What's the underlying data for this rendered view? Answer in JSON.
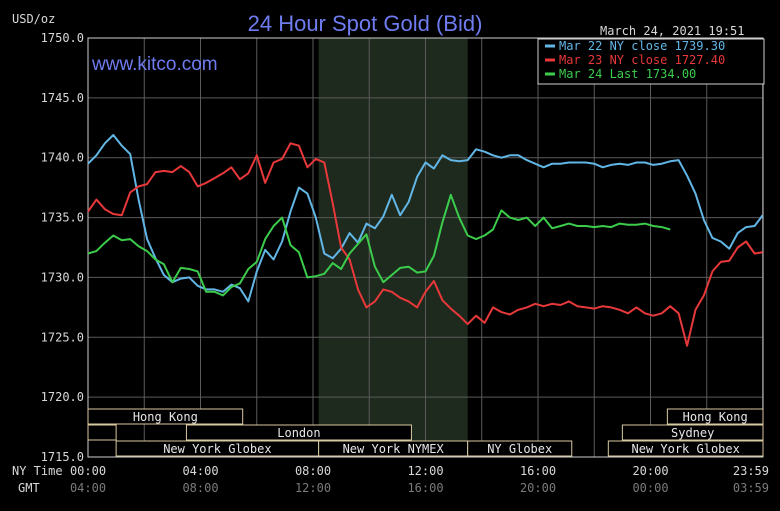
{
  "chart_data": {
    "type": "line",
    "title": "24 Hour Spot Gold (Bid)",
    "brand": "www.kitco.com",
    "timestamp": "March 24, 2021 19:51",
    "ylabel": "USD/oz",
    "ylim": [
      1715.0,
      1750.0
    ],
    "yticks": [
      "1750.0",
      "1745.0",
      "1740.0",
      "1735.0",
      "1730.0",
      "1725.0",
      "1720.0",
      "1715.0"
    ],
    "x_axis_label_ny": "NY Time",
    "x_axis_label_gmt": "GMT",
    "xlim": [
      0,
      24
    ],
    "xticks_ny": [
      "00:00",
      "04:00",
      "08:00",
      "12:00",
      "16:00",
      "20:00",
      "23:59"
    ],
    "xticks_gmt": [
      "04:00",
      "08:00",
      "12:00",
      "16:00",
      "20:00",
      "00:00",
      "03:59"
    ],
    "grid": true,
    "legend_position": "top-right",
    "shaded_region": {
      "x": [
        8.2,
        13.5
      ],
      "color": "#1e2a1e"
    },
    "sessions": [
      {
        "label": "Hong Kong",
        "row": 0,
        "start": 0,
        "end": 5.5
      },
      {
        "label": "Hong Kong",
        "row": 0,
        "start": 20.6,
        "end": 24
      },
      {
        "label": "London",
        "row": 1,
        "start": 3.5,
        "end": 11.5
      },
      {
        "label": "Sydney",
        "row": 1,
        "start": 19.0,
        "end": 24
      },
      {
        "label": "",
        "row": 1,
        "start": 0,
        "end": 1.0
      },
      {
        "label": "New York Globex",
        "row": 2,
        "start": 1.0,
        "end": 8.2
      },
      {
        "label": "New York NYMEX",
        "row": 2,
        "start": 8.2,
        "end": 13.5
      },
      {
        "label": "NY Globex",
        "row": 2,
        "start": 13.5,
        "end": 17.2
      },
      {
        "label": "New York Globex",
        "row": 2,
        "start": 18.5,
        "end": 24
      }
    ],
    "series": [
      {
        "name": "Mar 22 NY close 1739.30",
        "color": "#62b6e6",
        "x": [
          0,
          0.3,
          0.6,
          0.9,
          1.2,
          1.5,
          1.8,
          2.1,
          2.4,
          2.7,
          3.0,
          3.3,
          3.6,
          3.9,
          4.2,
          4.5,
          4.8,
          5.1,
          5.4,
          5.7,
          6.0,
          6.3,
          6.6,
          6.9,
          7.2,
          7.5,
          7.8,
          8.1,
          8.4,
          8.7,
          9.0,
          9.3,
          9.6,
          9.9,
          10.2,
          10.5,
          10.8,
          11.1,
          11.4,
          11.7,
          12.0,
          12.3,
          12.6,
          12.9,
          13.2,
          13.5,
          13.8,
          14.1,
          14.4,
          14.7,
          15.0,
          15.3,
          15.6,
          15.9,
          16.2,
          16.5,
          16.8,
          17.1,
          17.4,
          17.7,
          18.0,
          18.3,
          18.6,
          18.9,
          19.2,
          19.5,
          19.8,
          20.1,
          20.4,
          20.7,
          21.0,
          21.3,
          21.6,
          21.9,
          22.2,
          22.5,
          22.8,
          23.1,
          23.4,
          23.7,
          23.99
        ],
        "y": [
          1739.5,
          1740.2,
          1741.2,
          1741.9,
          1741.0,
          1740.3,
          1736.5,
          1733.2,
          1731.6,
          1730.2,
          1729.6,
          1729.9,
          1730.0,
          1729.3,
          1729.0,
          1729.0,
          1728.8,
          1729.4,
          1729.1,
          1728.0,
          1730.5,
          1732.3,
          1731.5,
          1733.0,
          1735.5,
          1737.5,
          1737.0,
          1735.0,
          1732.0,
          1731.6,
          1732.4,
          1733.7,
          1732.9,
          1734.5,
          1734.1,
          1735.1,
          1736.9,
          1735.2,
          1736.3,
          1738.4,
          1739.6,
          1739.1,
          1740.2,
          1739.8,
          1739.7,
          1739.8,
          1740.7,
          1740.5,
          1740.2,
          1740.0,
          1740.2,
          1740.2,
          1739.8,
          1739.5,
          1739.2,
          1739.5,
          1739.5,
          1739.6,
          1739.6,
          1739.6,
          1739.5,
          1739.2,
          1739.4,
          1739.5,
          1739.4,
          1739.6,
          1739.6,
          1739.4,
          1739.5,
          1739.7,
          1739.8,
          1738.5,
          1737.0,
          1734.8,
          1733.3,
          1733.0,
          1732.4,
          1733.7,
          1734.2,
          1734.3,
          1735.2
        ]
      },
      {
        "name": "Mar 23 NY close 1727.40",
        "color": "#e8383a",
        "x": [
          0,
          0.3,
          0.6,
          0.9,
          1.2,
          1.5,
          1.8,
          2.1,
          2.4,
          2.7,
          3.0,
          3.3,
          3.6,
          3.9,
          4.2,
          4.5,
          4.8,
          5.1,
          5.4,
          5.7,
          6.0,
          6.3,
          6.6,
          6.9,
          7.2,
          7.5,
          7.8,
          8.1,
          8.4,
          8.7,
          9.0,
          9.3,
          9.6,
          9.9,
          10.2,
          10.5,
          10.8,
          11.1,
          11.4,
          11.7,
          12.0,
          12.3,
          12.6,
          12.9,
          13.2,
          13.5,
          13.8,
          14.1,
          14.4,
          14.7,
          15.0,
          15.3,
          15.6,
          15.9,
          16.2,
          16.5,
          16.8,
          17.1,
          17.4,
          17.7,
          18.0,
          18.3,
          18.6,
          18.9,
          19.2,
          19.5,
          19.8,
          20.1,
          20.4,
          20.7,
          21.0,
          21.3,
          21.6,
          21.9,
          22.2,
          22.5,
          22.8,
          23.1,
          23.4,
          23.7,
          23.99
        ],
        "y": [
          1735.5,
          1736.5,
          1735.7,
          1735.3,
          1735.2,
          1737.1,
          1737.6,
          1737.8,
          1738.8,
          1738.9,
          1738.8,
          1739.3,
          1738.8,
          1737.6,
          1737.9,
          1738.3,
          1738.7,
          1739.2,
          1738.2,
          1738.7,
          1740.2,
          1737.9,
          1739.6,
          1739.9,
          1741.2,
          1741.0,
          1739.2,
          1739.9,
          1739.6,
          1736.2,
          1732.5,
          1731.5,
          1729.0,
          1727.5,
          1728.0,
          1729.0,
          1728.8,
          1728.3,
          1728.0,
          1727.5,
          1728.8,
          1729.7,
          1728.1,
          1727.4,
          1726.8,
          1726.1,
          1726.8,
          1726.2,
          1727.5,
          1727.1,
          1726.9,
          1727.3,
          1727.5,
          1727.8,
          1727.6,
          1727.8,
          1727.7,
          1728.0,
          1727.6,
          1727.5,
          1727.4,
          1727.6,
          1727.5,
          1727.3,
          1727.0,
          1727.5,
          1727.0,
          1726.8,
          1727.0,
          1727.6,
          1727.0,
          1724.3,
          1727.3,
          1728.5,
          1730.5,
          1731.3,
          1731.4,
          1732.5,
          1733.0,
          1732.0,
          1732.1
        ]
      },
      {
        "name": "Mar 24 Last 1734.00",
        "color": "#3ccc4c",
        "x": [
          0,
          0.3,
          0.6,
          0.9,
          1.2,
          1.5,
          1.8,
          2.1,
          2.4,
          2.7,
          3.0,
          3.3,
          3.6,
          3.9,
          4.2,
          4.5,
          4.8,
          5.1,
          5.4,
          5.7,
          6.0,
          6.3,
          6.6,
          6.9,
          7.2,
          7.5,
          7.8,
          8.1,
          8.4,
          8.7,
          9.0,
          9.3,
          9.6,
          9.9,
          10.2,
          10.5,
          10.8,
          11.1,
          11.4,
          11.7,
          12.0,
          12.3,
          12.6,
          12.9,
          13.2,
          13.5,
          13.8,
          14.1,
          14.4,
          14.7,
          15.0,
          15.3,
          15.6,
          15.9,
          16.2,
          16.5,
          16.8,
          17.1,
          17.4,
          17.7,
          18.0,
          18.3,
          18.6,
          18.9,
          19.2,
          19.5,
          19.8,
          20.1,
          20.4,
          20.7
        ],
        "y": [
          1732.0,
          1732.2,
          1732.9,
          1733.5,
          1733.1,
          1733.2,
          1732.6,
          1732.2,
          1731.5,
          1731.1,
          1729.6,
          1730.8,
          1730.7,
          1730.5,
          1728.8,
          1728.8,
          1728.5,
          1729.2,
          1729.5,
          1730.7,
          1731.3,
          1733.2,
          1734.3,
          1735.0,
          1732.7,
          1732.1,
          1730.0,
          1730.1,
          1730.3,
          1731.2,
          1730.7,
          1732.0,
          1732.8,
          1733.6,
          1730.9,
          1729.6,
          1730.2,
          1730.8,
          1730.9,
          1730.4,
          1730.5,
          1731.8,
          1734.6,
          1736.9,
          1735.0,
          1733.5,
          1733.2,
          1733.5,
          1734.0,
          1735.6,
          1735.0,
          1734.8,
          1735.0,
          1734.3,
          1735.0,
          1734.1,
          1734.3,
          1734.5,
          1734.3,
          1734.3,
          1734.2,
          1734.3,
          1734.2,
          1734.5,
          1734.4,
          1734.4,
          1734.5,
          1734.3,
          1734.2,
          1734.0
        ]
      }
    ]
  }
}
